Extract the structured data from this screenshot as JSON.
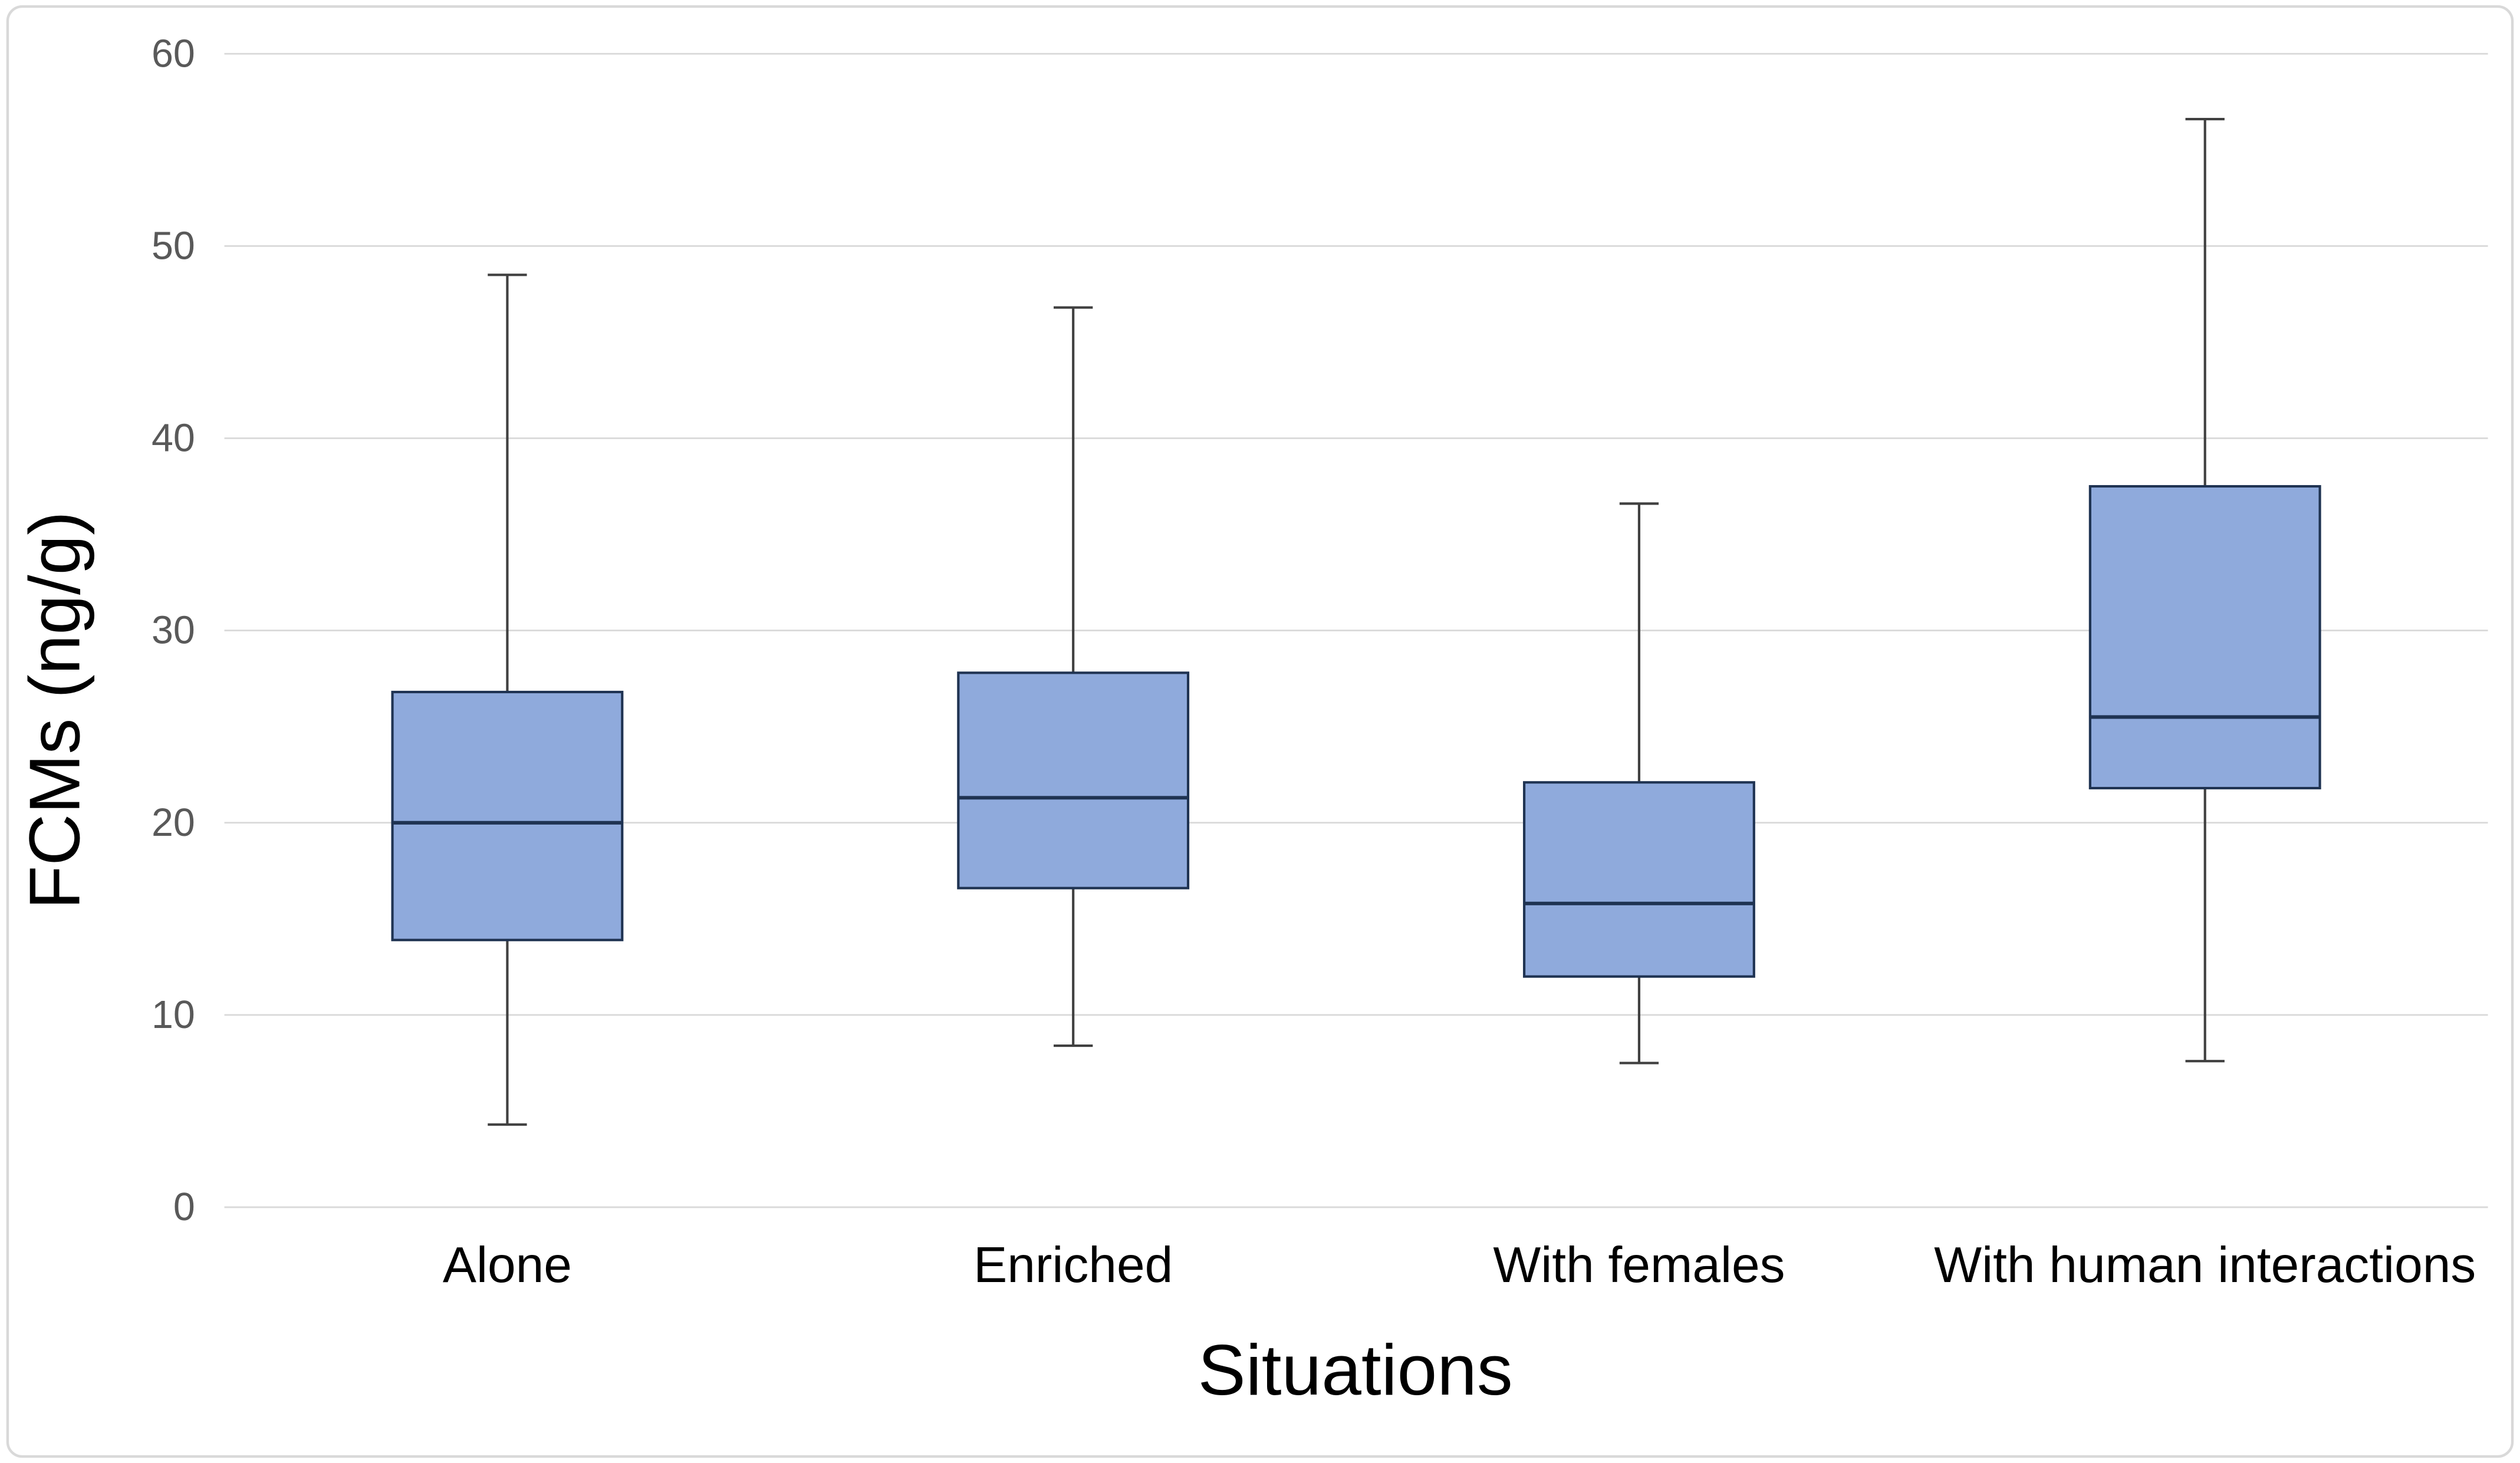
{
  "figure": {
    "x_axis_title": "Situations",
    "y_axis_title": "FCMs (ng/g)"
  },
  "chart_data": {
    "type": "boxplot",
    "title": "",
    "xlabel": "Situations",
    "ylabel": "FCMs (ng/g)",
    "categories": [
      "Alone",
      "Enriched",
      "With females",
      "With human interactions"
    ],
    "series": [
      {
        "name": "Alone",
        "whisker_low": 4.3,
        "q1": 13.9,
        "median": 20.0,
        "q3": 26.8,
        "whisker_high": 48.5
      },
      {
        "name": "Enriched",
        "whisker_low": 8.4,
        "q1": 16.6,
        "median": 21.3,
        "q3": 27.8,
        "whisker_high": 46.8
      },
      {
        "name": "With females",
        "whisker_low": 7.5,
        "q1": 12.0,
        "median": 15.8,
        "q3": 22.1,
        "whisker_high": 36.6
      },
      {
        "name": "With human interactions",
        "whisker_low": 7.6,
        "q1": 21.8,
        "median": 25.5,
        "q3": 37.5,
        "whisker_high": 56.6
      }
    ],
    "ylim": [
      0,
      60
    ],
    "yticks": [
      0,
      10,
      20,
      30,
      40,
      50,
      60
    ],
    "grid": "horizontal-only",
    "legend_position": "none",
    "colors": {
      "box_fill": "#8FAADC",
      "box_border": "#1F3352",
      "median_line": "#1F3352",
      "whisker_line": "#404040",
      "gridline": "#D9D9D9",
      "tick_label": "#595959",
      "category_label": "#000000",
      "frame_border": "#D9D9D9",
      "background": "#FFFFFF"
    }
  }
}
